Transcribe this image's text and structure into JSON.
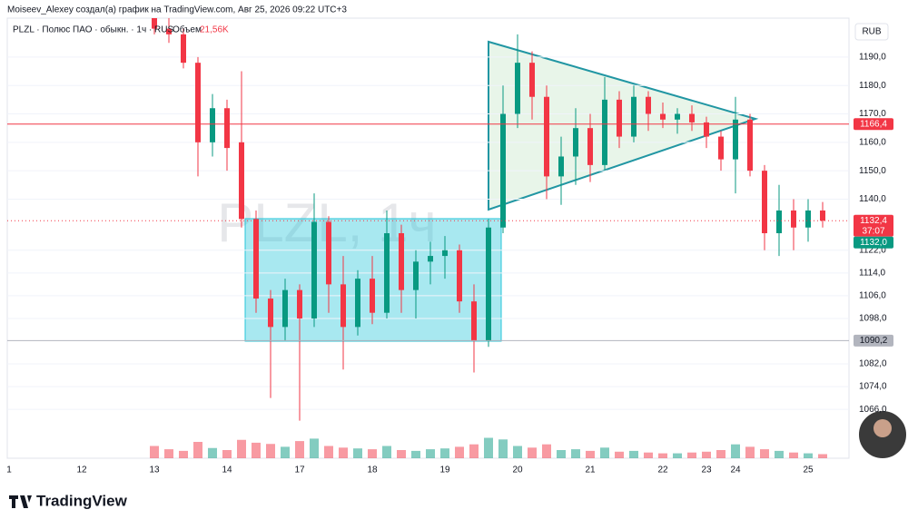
{
  "chart_data": {
    "type": "candlestick",
    "title": "Moiseev_Alexey создал(а) график на TradingView.com, Авг 25, 2026 09:22 UTC+3",
    "symbol": "PLZL · Полюс ПАО · обыкн. · 1ч · RUS",
    "volume_label": "Объем",
    "volume_value": "21,56K",
    "watermark": "PLZL, 1ч",
    "currency": "RUB",
    "brand": "TradingView",
    "up_color": "#089981",
    "down_color": "#f23645",
    "categories": [
      "1",
      null,
      null,
      null,
      null,
      "12",
      null,
      null,
      null,
      null,
      "13",
      null,
      null,
      null,
      null,
      "14",
      null,
      null,
      null,
      null,
      "17",
      null,
      null,
      null,
      null,
      "18",
      null,
      null,
      null,
      null,
      "19",
      null,
      null,
      null,
      null,
      "20",
      null,
      null,
      null,
      null,
      "21",
      null,
      null,
      null,
      null,
      "22",
      null,
      null,
      "23",
      null,
      "24",
      null,
      null,
      null,
      null,
      "25",
      null
    ],
    "open": [
      null,
      null,
      null,
      null,
      null,
      null,
      null,
      null,
      null,
      null,
      1204,
      1200,
      1198,
      1188,
      1160,
      1172,
      1160,
      1133,
      1105,
      1095,
      1108,
      1098,
      1132,
      1110,
      1095,
      1112,
      1100,
      1128,
      1108,
      1118,
      1120,
      1122,
      1104,
      1090,
      1130,
      1170,
      1188,
      1176,
      1148,
      1155,
      1165,
      1152,
      1175,
      1162,
      1176,
      1170,
      1168,
      1170,
      1167,
      1162,
      1154,
      1168,
      1150,
      1128,
      1136,
      1130,
      1136
    ],
    "high": [
      null,
      null,
      null,
      null,
      null,
      null,
      null,
      null,
      null,
      null,
      1206,
      1204,
      1200,
      1190,
      1177,
      1175,
      1185,
      1136,
      1108,
      1112,
      1110,
      1142,
      1134,
      1120,
      1115,
      1120,
      1136,
      1131,
      1122,
      1125,
      1127,
      1124,
      1110,
      1133,
      1180,
      1198,
      1192,
      1180,
      1162,
      1172,
      1170,
      1183,
      1178,
      1180,
      1178,
      1174,
      1172,
      1173,
      1169,
      1164,
      1176,
      1170,
      1152,
      1145,
      1140,
      1140,
      1139
    ],
    "low": [
      null,
      null,
      null,
      null,
      null,
      null,
      null,
      null,
      null,
      null,
      1198,
      1195,
      1186,
      1148,
      1155,
      1150,
      1130,
      1100,
      1070,
      1090,
      1062,
      1095,
      1100,
      1080,
      1092,
      1096,
      1098,
      1100,
      1098,
      1110,
      1112,
      1100,
      1079,
      1088,
      1128,
      1165,
      1168,
      1140,
      1138,
      1145,
      1146,
      1150,
      1158,
      1160,
      1164,
      1165,
      1163,
      1164,
      1158,
      1150,
      1142,
      1148,
      1122,
      1120,
      1122,
      1125,
      1130
    ],
    "close": [
      null,
      null,
      null,
      null,
      null,
      null,
      null,
      null,
      null,
      null,
      1200,
      1198,
      1188,
      1160,
      1172,
      1158,
      1133,
      1105,
      1095,
      1108,
      1098,
      1132,
      1110,
      1095,
      1112,
      1100,
      1128,
      1108,
      1118,
      1120,
      1122,
      1104,
      1090,
      1130,
      1170,
      1188,
      1176,
      1148,
      1155,
      1165,
      1152,
      1175,
      1162,
      1176,
      1170,
      1168,
      1170,
      1167,
      1162,
      1154,
      1168,
      1150,
      1128,
      1136,
      1130,
      1136,
      1132.4
    ],
    "volume": [
      null,
      null,
      null,
      null,
      null,
      null,
      null,
      null,
      null,
      null,
      30,
      22,
      18,
      40,
      25,
      20,
      45,
      38,
      35,
      28,
      42,
      48,
      30,
      26,
      24,
      22,
      30,
      20,
      18,
      22,
      24,
      28,
      34,
      50,
      46,
      30,
      26,
      34,
      20,
      22,
      18,
      26,
      16,
      18,
      14,
      12,
      12,
      14,
      16,
      20,
      34,
      28,
      22,
      18,
      14,
      12,
      10
    ],
    "ylim": [
      1048.8,
      1203.7
    ],
    "yticks": [
      {
        "value": 1190,
        "label": "1190,0"
      },
      {
        "value": 1180,
        "label": "1180,0"
      },
      {
        "value": 1170,
        "label": "1170,0"
      },
      {
        "value": 1160,
        "label": "1160,0"
      },
      {
        "value": 1150,
        "label": "1150,0"
      },
      {
        "value": 1140,
        "label": "1140,0"
      },
      {
        "value": 1122,
        "label": "1122,0"
      },
      {
        "value": 1114,
        "label": "1114,0"
      },
      {
        "value": 1106,
        "label": "1106,0"
      },
      {
        "value": 1098,
        "label": "1098,0"
      },
      {
        "value": 1082,
        "label": "1082,0"
      },
      {
        "value": 1074,
        "label": "1074,0"
      },
      {
        "value": 1066,
        "label": "1066,0"
      }
    ],
    "price_labels": [
      {
        "value": 1166.4,
        "label": "1166,4",
        "color": "#f23645",
        "line": "solid"
      },
      {
        "value": 1132.4,
        "label": "1132,4",
        "countdown": "37:07",
        "color": "#f23645",
        "line": "dotted"
      },
      {
        "value": 1132.0,
        "label": "1132,0",
        "color": "#089981"
      },
      {
        "value": 1090.2,
        "label": "1090,2",
        "color": "#b2b5be",
        "line": "solid"
      }
    ]
  }
}
